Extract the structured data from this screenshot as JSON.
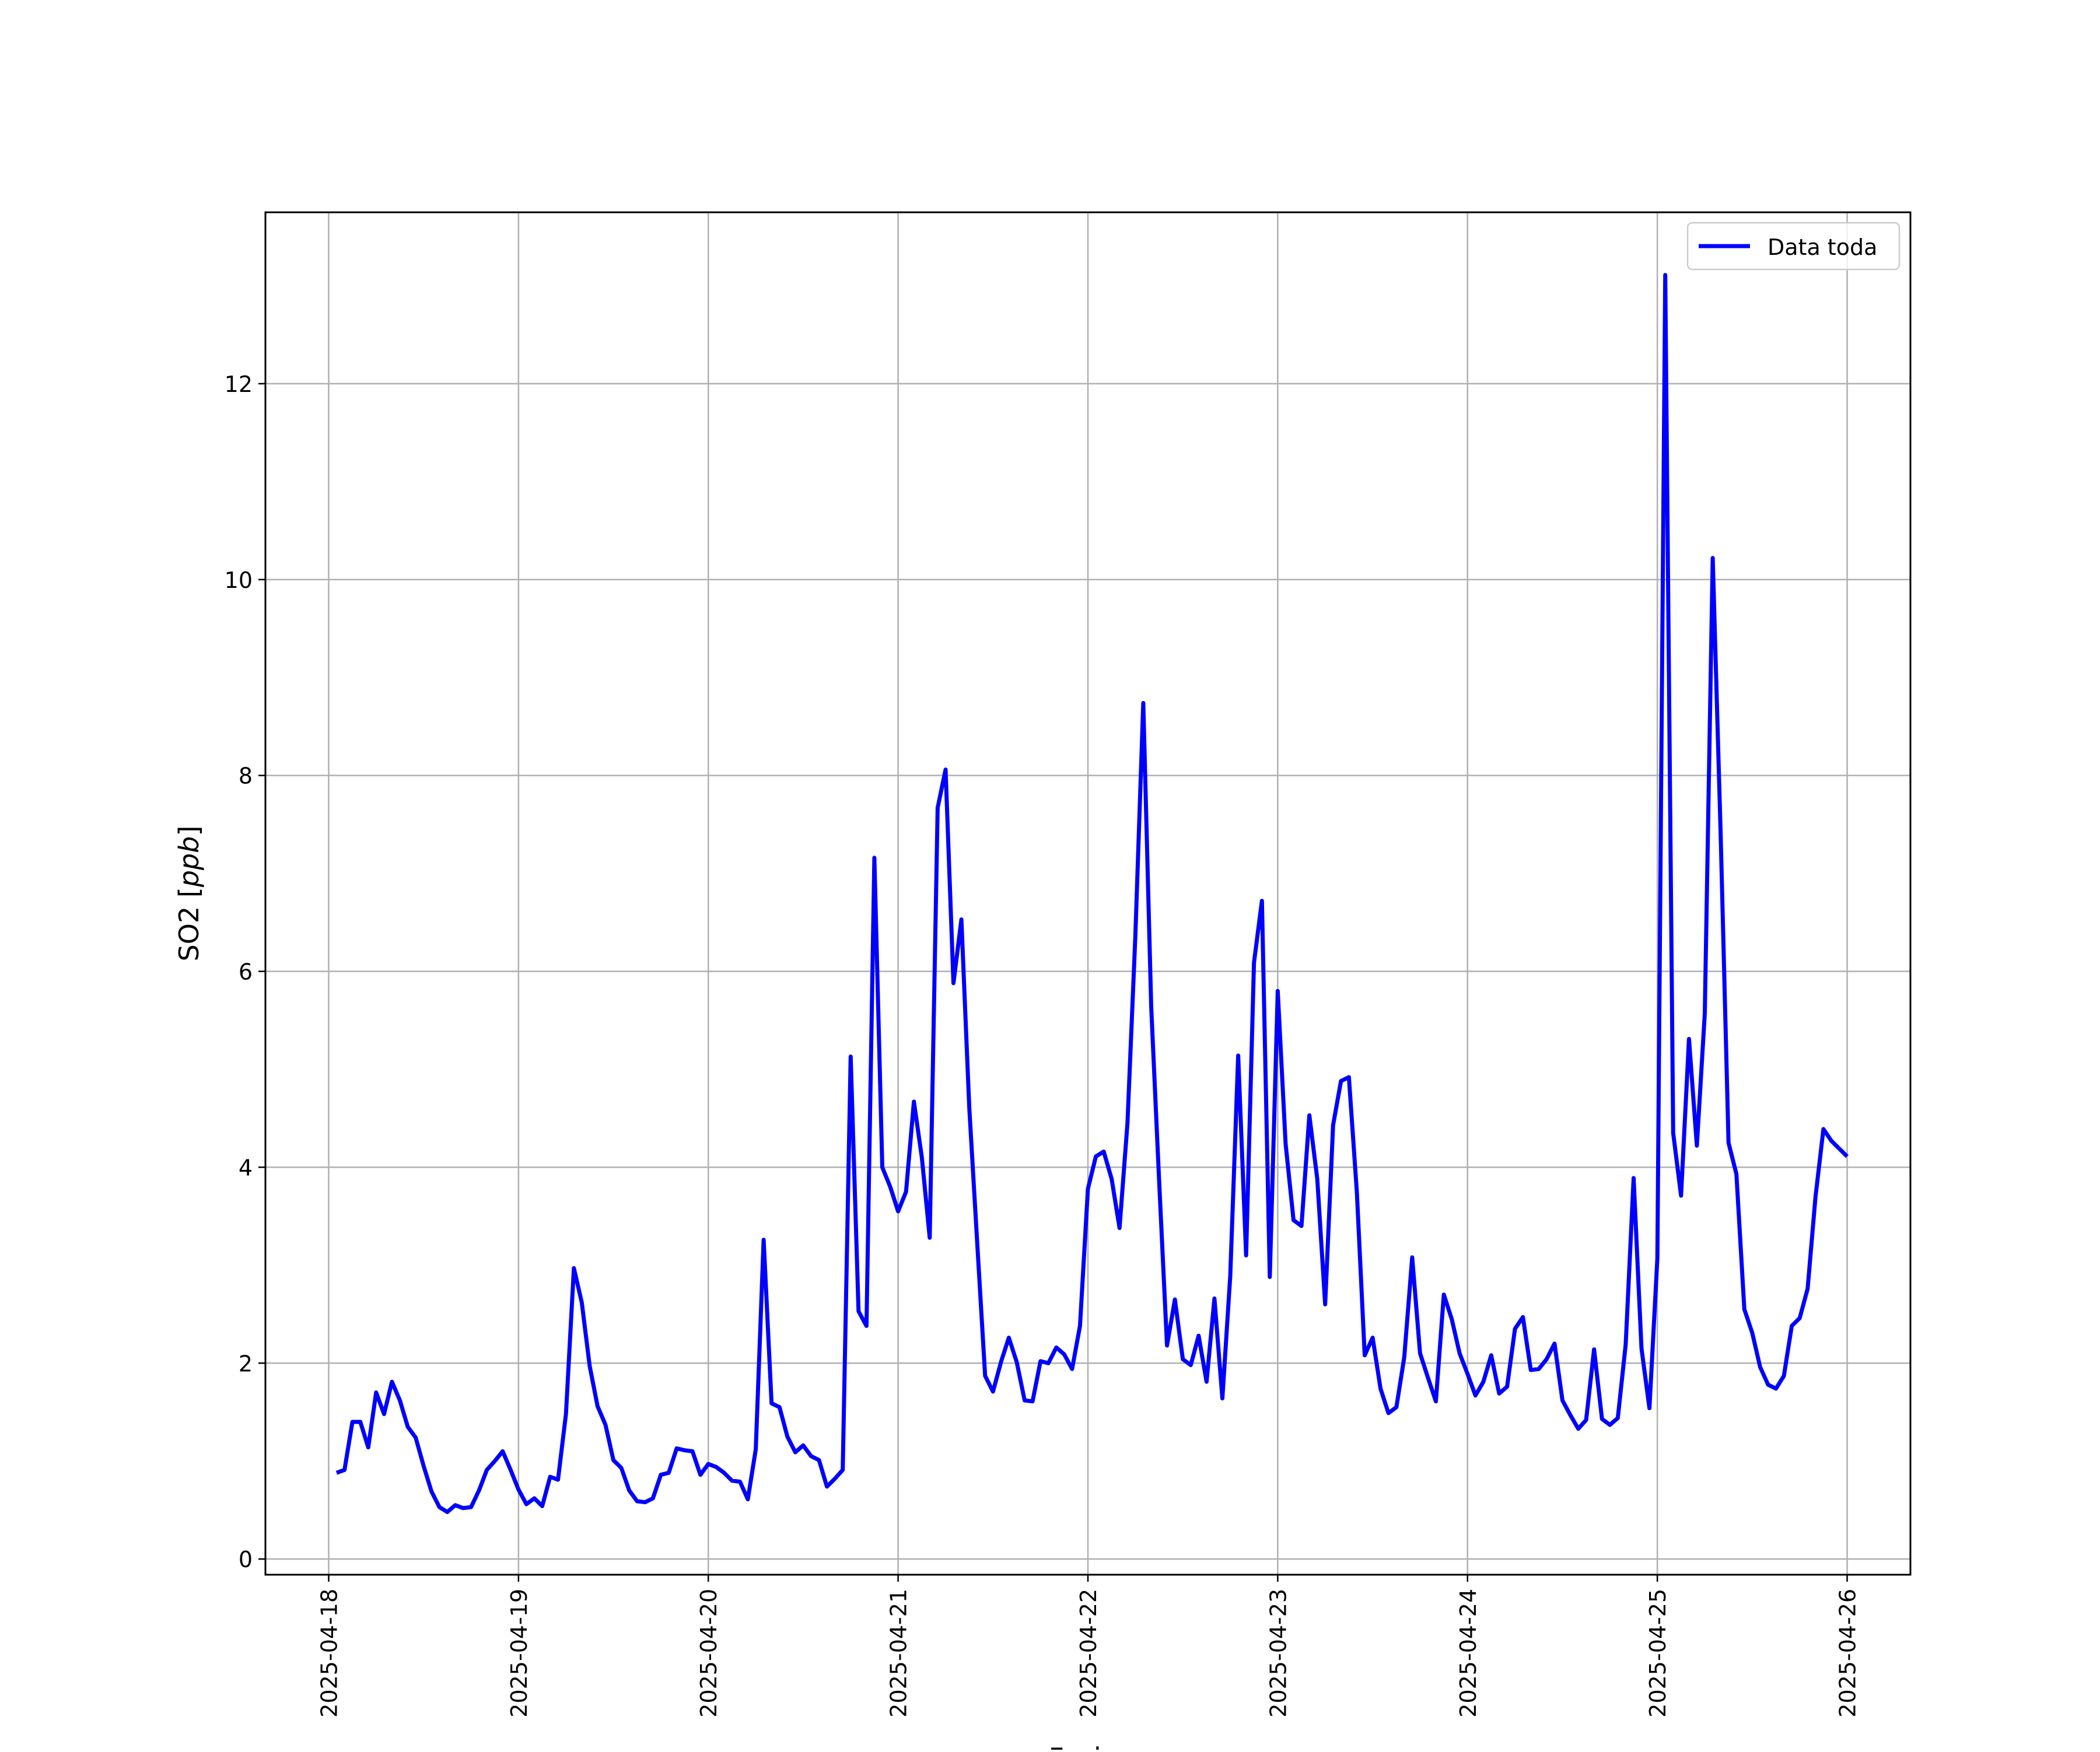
{
  "chart_data": {
    "type": "line",
    "title": "",
    "xlabel": "Fecha",
    "ylabel": "SO2 [ppb]",
    "ylabel_plain": "SO2 [",
    "ylabel_unit": "ppb",
    "ylabel_close": "]",
    "ylim": [
      -0.16,
      13.75
    ],
    "yticks": [
      0,
      2,
      4,
      6,
      8,
      10,
      12
    ],
    "ytick_labels": [
      "0",
      "2",
      "4",
      "6",
      "8",
      "10",
      "12"
    ],
    "xlim": [
      "2025-04-17T16:00",
      "2025-04-26T08:00"
    ],
    "xticks": [
      "2025-04-18",
      "2025-04-19",
      "2025-04-20",
      "2025-04-21",
      "2025-04-22",
      "2025-04-23",
      "2025-04-24",
      "2025-04-25",
      "2025-04-26"
    ],
    "grid": true,
    "legend": "top-right",
    "series": [
      {
        "name": "Data toda",
        "color": "#0000ff",
        "x_start": "2025-04-18T01:00",
        "x_step_hours": 1,
        "values": [
          0.88,
          0.91,
          1.4,
          1.4,
          1.14,
          1.7,
          1.48,
          1.81,
          1.62,
          1.35,
          1.24,
          0.95,
          0.69,
          0.53,
          0.48,
          0.55,
          0.52,
          0.53,
          0.7,
          0.91,
          1.0,
          1.1,
          0.91,
          0.71,
          0.56,
          0.62,
          0.54,
          0.84,
          0.81,
          1.48,
          2.97,
          2.62,
          1.97,
          1.56,
          1.37,
          1.01,
          0.93,
          0.7,
          0.59,
          0.58,
          0.62,
          0.86,
          0.88,
          1.13,
          1.11,
          1.1,
          0.86,
          0.97,
          0.94,
          0.88,
          0.8,
          0.79,
          0.61,
          1.12,
          3.26,
          1.59,
          1.55,
          1.25,
          1.09,
          1.16,
          1.05,
          1.01,
          0.74,
          0.82,
          0.91,
          5.13,
          2.53,
          2.38,
          7.16,
          4.0,
          3.8,
          3.55,
          3.75,
          4.67,
          4.1,
          3.28,
          7.67,
          8.06,
          5.88,
          6.53,
          4.61,
          3.23,
          1.87,
          1.71,
          2.01,
          2.26,
          2.01,
          1.62,
          1.61,
          2.02,
          2.0,
          2.16,
          2.09,
          1.94,
          2.38,
          3.78,
          4.11,
          4.16,
          3.88,
          3.38,
          4.45,
          6.36,
          8.74,
          5.64,
          3.87,
          2.18,
          2.65,
          2.04,
          1.98,
          2.28,
          1.81,
          2.66,
          1.64,
          2.89,
          5.14,
          3.1,
          6.09,
          6.72,
          2.88,
          5.8,
          4.24,
          3.46,
          3.4,
          4.53,
          3.88,
          2.6,
          4.43,
          4.88,
          4.92,
          3.75,
          2.08,
          2.26,
          1.74,
          1.49,
          1.55,
          2.06,
          3.08,
          2.1,
          1.85,
          1.61,
          2.7,
          2.45,
          2.1,
          1.89,
          1.67,
          1.81,
          2.08,
          1.69,
          1.76,
          2.35,
          2.47,
          1.93,
          1.94,
          2.04,
          2.2,
          1.62,
          1.47,
          1.33,
          1.42,
          2.14,
          1.43,
          1.37,
          1.44,
          2.19,
          3.89,
          2.15,
          1.54,
          3.07,
          13.11,
          4.35,
          3.71,
          5.31,
          4.22,
          5.57,
          10.22,
          7.42,
          4.25,
          3.93,
          2.55,
          2.31,
          1.96,
          1.78,
          1.74,
          1.87,
          2.38,
          2.46,
          2.76,
          3.7,
          4.39,
          4.27,
          4.19,
          4.11
        ]
      }
    ]
  }
}
